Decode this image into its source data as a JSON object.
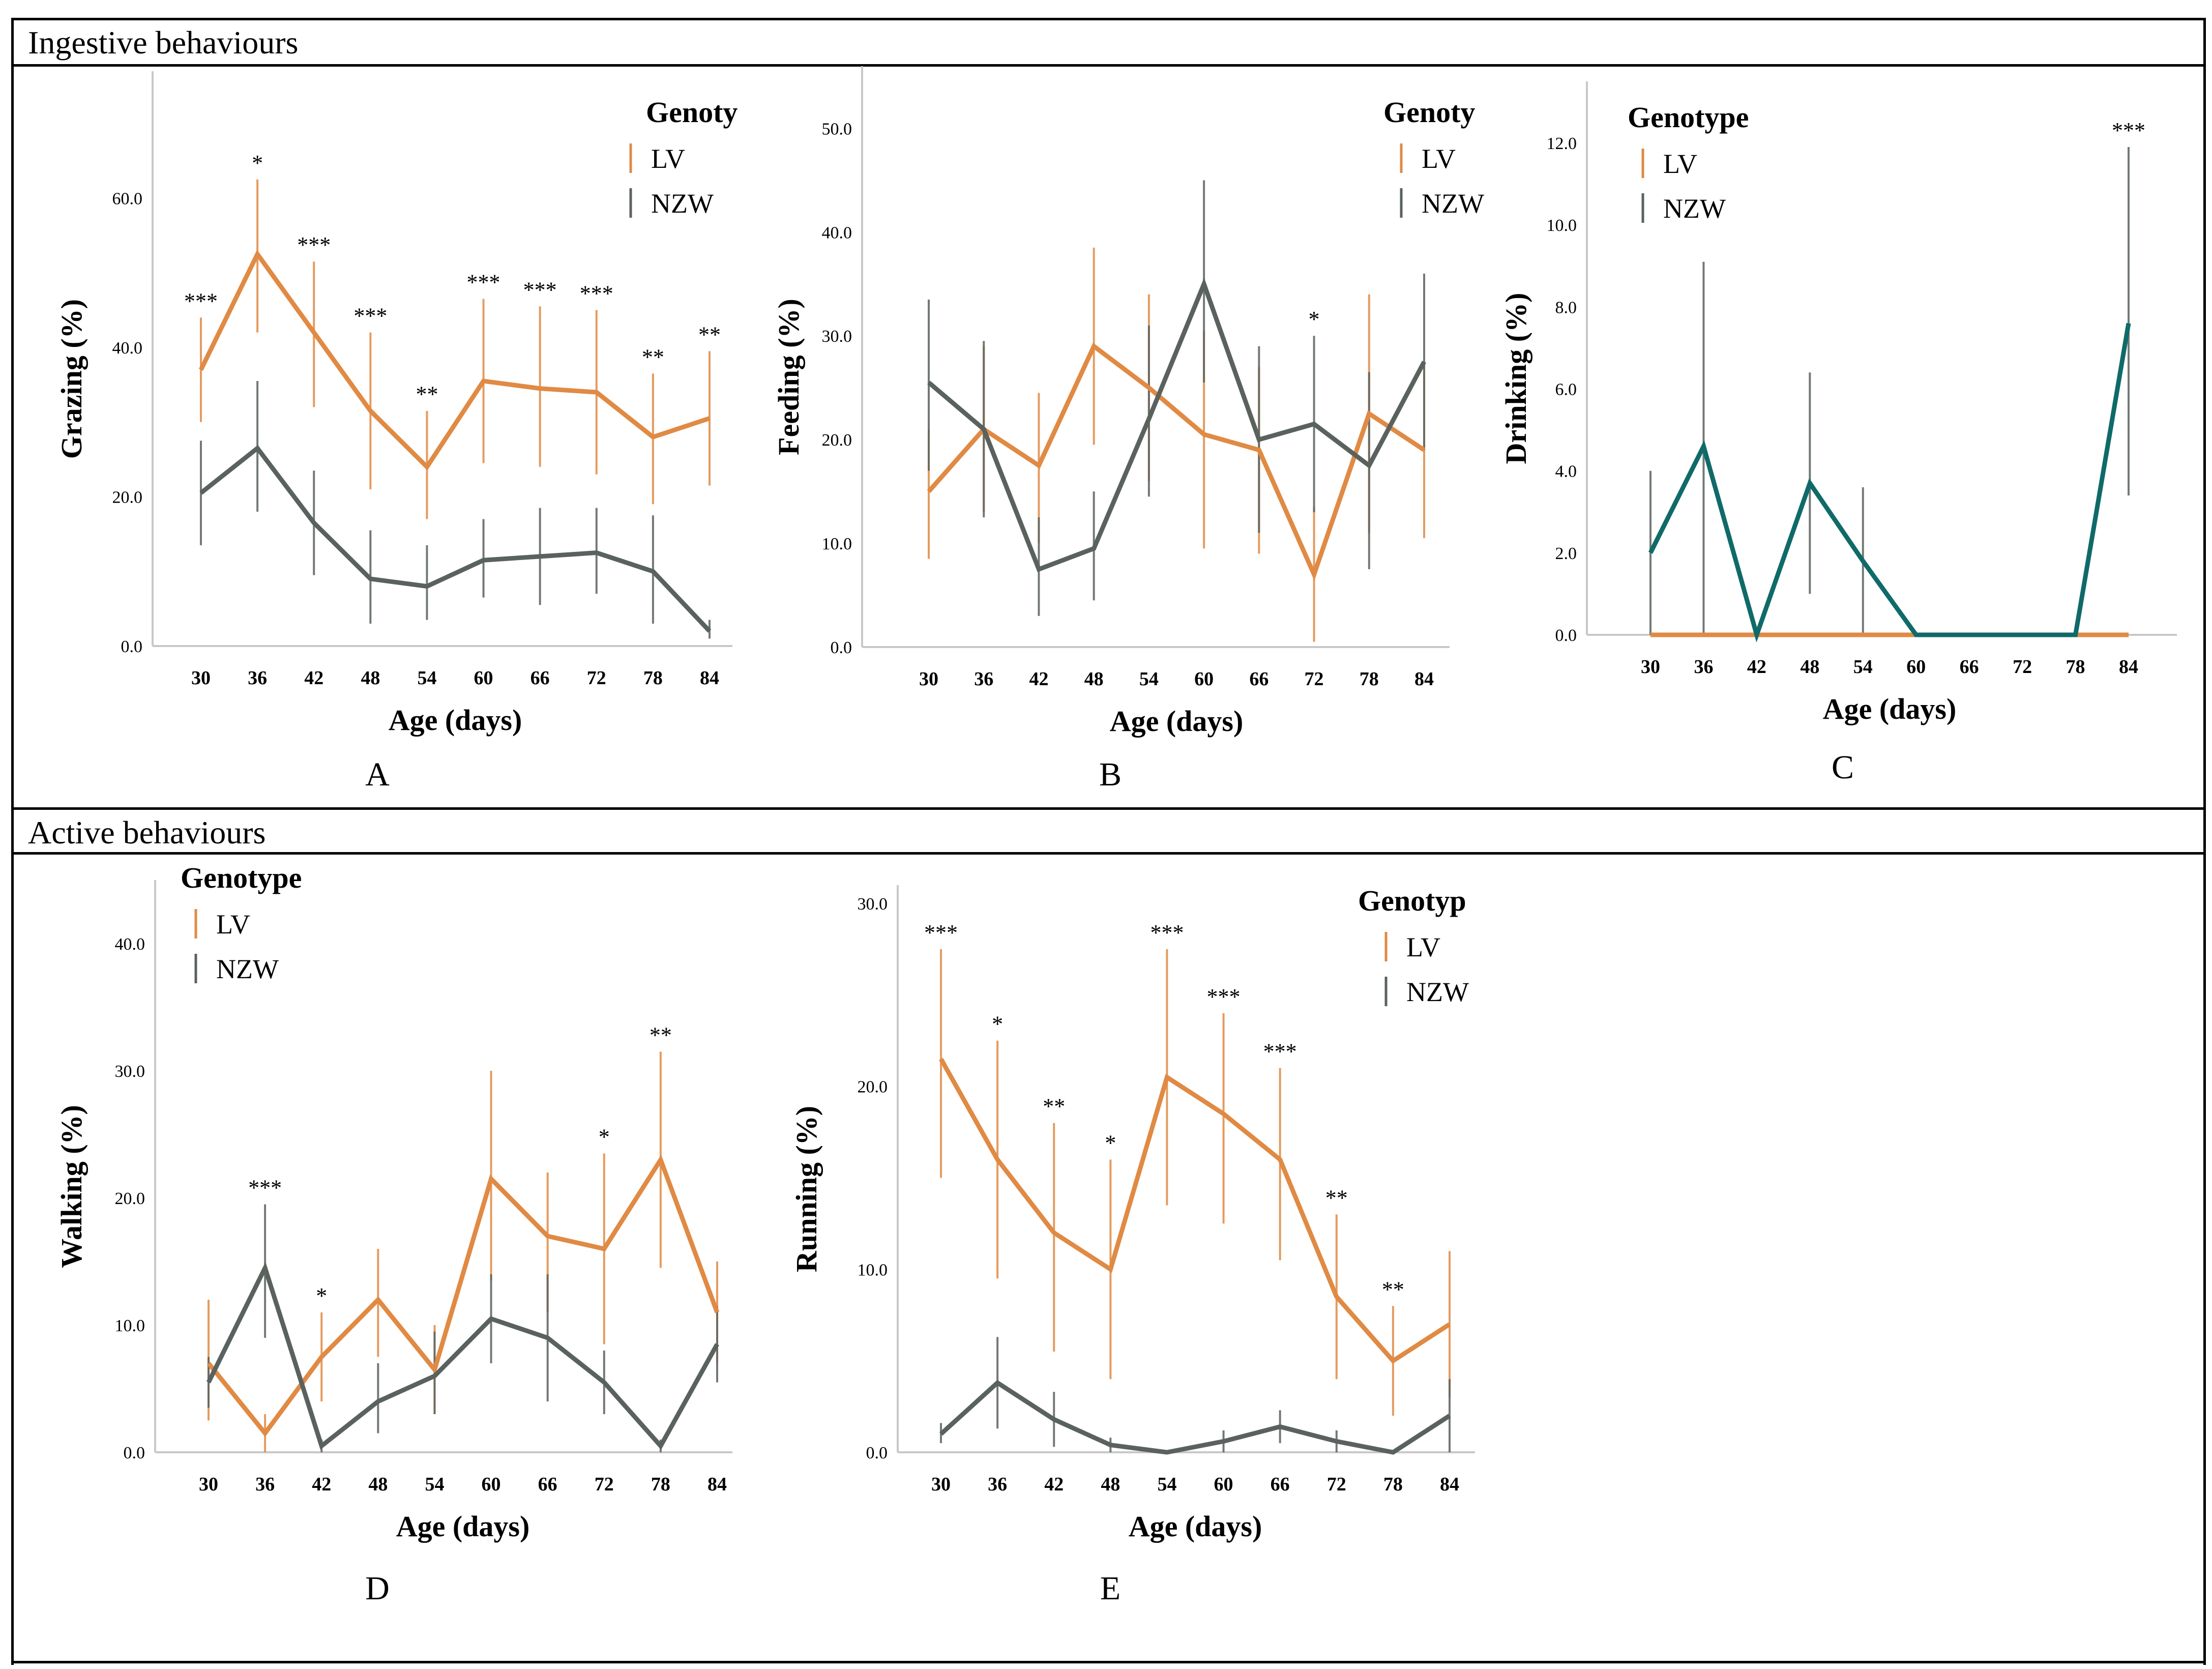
{
  "sections": {
    "ingestive": "Ingestive behaviours",
    "active": "Active behaviours"
  },
  "colors": {
    "lv": "#e08a44",
    "nzw": "#5a625e",
    "drink": "#0f6a69"
  },
  "chart_data": [
    {
      "id": "A",
      "type": "line",
      "panel_label": "A",
      "xlabel": "Age (days)",
      "ylabel": "Grazing (%)",
      "categories": [
        "30",
        "36",
        "42",
        "48",
        "54",
        "60",
        "66",
        "72",
        "78",
        "84"
      ],
      "yticks": [
        "0.0",
        "20.0",
        "40.0",
        "60.0"
      ],
      "ylim": [
        0,
        77
      ],
      "legend": {
        "title": "Genoty",
        "items": [
          "LV",
          "NZW"
        ]
      },
      "series": [
        {
          "name": "LV",
          "values": [
            37,
            52.5,
            42,
            31.5,
            24,
            35.5,
            34.5,
            34,
            28,
            30.5
          ],
          "low": [
            30,
            42,
            32,
            21,
            17,
            24.5,
            24,
            23,
            19,
            21.5
          ],
          "high": [
            44,
            62.5,
            51.5,
            42,
            31.5,
            46.5,
            45.5,
            45,
            36.5,
            39.5
          ]
        },
        {
          "name": "NZW",
          "values": [
            20.5,
            26.5,
            16.5,
            9,
            8,
            11.5,
            12,
            12.5,
            10,
            2
          ],
          "low": [
            13.5,
            18,
            9.5,
            3,
            3.5,
            6.5,
            5.5,
            7,
            3,
            1
          ],
          "high": [
            27.5,
            35.5,
            23.5,
            15.5,
            13.5,
            17,
            18.5,
            18.5,
            17.5,
            3.5
          ]
        }
      ],
      "annotations": [
        "***",
        "*",
        "***",
        "***",
        "**",
        "***",
        "***",
        "***",
        "**",
        "**"
      ],
      "annotation_y": [
        44,
        62.5,
        51.5,
        42,
        31.5,
        46.5,
        45.5,
        45,
        36.5,
        39.5
      ]
    },
    {
      "id": "B",
      "type": "line",
      "panel_label": "B",
      "xlabel": "Age (days)",
      "ylabel": "Feeding (%)",
      "categories": [
        "30",
        "36",
        "42",
        "48",
        "54",
        "60",
        "66",
        "72",
        "78",
        "84"
      ],
      "yticks": [
        "0.0",
        "10.0",
        "20.0",
        "30.0",
        "40.0",
        "50.0"
      ],
      "ylim": [
        0,
        56
      ],
      "legend": {
        "title": "Genoty",
        "items": [
          "LV",
          "NZW"
        ]
      },
      "series": [
        {
          "name": "LV",
          "values": [
            15,
            21,
            17.5,
            29,
            25,
            20.5,
            19,
            7,
            22.5,
            19
          ],
          "low": [
            8.5,
            13,
            10,
            19.5,
            16,
            9.5,
            9,
            0.5,
            11,
            10.5
          ],
          "high": [
            21,
            29,
            24.5,
            38.5,
            34,
            30.5,
            27,
            13.5,
            34,
            27.5
          ]
        },
        {
          "name": "NZW",
          "values": [
            25.5,
            21,
            7.5,
            9.5,
            22,
            35,
            20,
            21.5,
            17.5,
            27.5
          ],
          "low": [
            17,
            12.5,
            3,
            4.5,
            14.5,
            25.5,
            11,
            13,
            7.5,
            19
          ],
          "high": [
            33.5,
            29.5,
            12.5,
            15,
            31,
            45,
            29,
            30,
            26.5,
            36
          ]
        }
      ],
      "annotations": [
        "",
        "",
        "",
        "",
        "",
        "",
        "",
        "*",
        "",
        ""
      ],
      "annotation_y": [
        0,
        0,
        0,
        0,
        0,
        0,
        0,
        30,
        0,
        0
      ]
    },
    {
      "id": "C",
      "type": "line",
      "panel_label": "C",
      "xlabel": "Age (days)",
      "ylabel": "Drinking (%)",
      "categories": [
        "30",
        "36",
        "42",
        "48",
        "54",
        "60",
        "66",
        "72",
        "78",
        "84"
      ],
      "yticks": [
        "0.0",
        "2.0",
        "4.0",
        "6.0",
        "8.0",
        "10.0",
        "12.0"
      ],
      "ylim": [
        0,
        13.5
      ],
      "legend": {
        "title": "Genotype",
        "items": [
          "LV",
          "NZW"
        ]
      },
      "series": [
        {
          "name": "LV",
          "values": [
            0,
            0,
            0,
            0,
            0,
            0,
            0,
            0,
            0,
            0
          ],
          "low": [
            0,
            0,
            0,
            0,
            0,
            0,
            0,
            0,
            0,
            0
          ],
          "high": [
            0,
            0,
            0,
            0,
            0,
            0,
            0,
            0,
            0,
            0
          ]
        },
        {
          "name": "NZW",
          "values": [
            2,
            4.6,
            0,
            3.7,
            1.8,
            0,
            0,
            0,
            0,
            7.6
          ],
          "low": [
            0,
            0,
            0,
            1,
            0,
            0,
            0,
            0,
            0,
            3.4
          ],
          "high": [
            4,
            9.1,
            0,
            6.4,
            3.6,
            0,
            0,
            0,
            0,
            11.9
          ]
        }
      ],
      "annotations": [
        "",
        "",
        "",
        "",
        "",
        "",
        "",
        "",
        "",
        "***"
      ],
      "annotation_y": [
        0,
        0,
        0,
        0,
        0,
        0,
        0,
        0,
        0,
        11.9
      ]
    },
    {
      "id": "D",
      "type": "line",
      "panel_label": "D",
      "xlabel": "Age (days)",
      "ylabel": "Walking (%)",
      "categories": [
        "30",
        "36",
        "42",
        "48",
        "54",
        "60",
        "66",
        "72",
        "78",
        "84"
      ],
      "yticks": [
        "0.0",
        "10.0",
        "20.0",
        "30.0",
        "40.0"
      ],
      "ylim": [
        0,
        45
      ],
      "legend": {
        "title": "Genotype",
        "items": [
          "LV",
          "NZW"
        ]
      },
      "series": [
        {
          "name": "LV",
          "values": [
            7,
            1.5,
            7.5,
            12,
            6.5,
            21.5,
            17,
            16,
            23,
            11
          ],
          "low": [
            2.5,
            0,
            4,
            7.5,
            3,
            13.5,
            11,
            8.5,
            14.5,
            7
          ],
          "high": [
            12,
            3,
            11,
            16,
            10,
            30,
            22,
            23.5,
            31.5,
            15
          ]
        },
        {
          "name": "NZW",
          "values": [
            5.5,
            14.5,
            0.5,
            4,
            6,
            10.5,
            9,
            5.5,
            0.5,
            8.5
          ],
          "low": [
            3.5,
            9,
            0,
            1.5,
            3,
            7,
            4,
            3,
            0,
            5.5
          ],
          "high": [
            7.5,
            19.5,
            1,
            7,
            9.5,
            14,
            14,
            8,
            1,
            11.5
          ]
        }
      ],
      "annotations": [
        "",
        "***",
        "*",
        "",
        "",
        "",
        "",
        "*",
        "**",
        ""
      ],
      "annotation_y": [
        0,
        19.5,
        11,
        0,
        0,
        0,
        0,
        23.5,
        31.5,
        0
      ]
    },
    {
      "id": "E",
      "type": "line",
      "panel_label": "E",
      "xlabel": "Age (days)",
      "ylabel": "Running (%)",
      "categories": [
        "30",
        "36",
        "42",
        "48",
        "54",
        "60",
        "66",
        "72",
        "78",
        "84"
      ],
      "yticks": [
        "0.0",
        "10.0",
        "20.0",
        "30.0"
      ],
      "ylim": [
        0,
        31
      ],
      "legend": {
        "title": "Genotyp",
        "items": [
          "LV",
          "NZW"
        ]
      },
      "series": [
        {
          "name": "LV",
          "values": [
            21.5,
            16,
            12,
            10,
            20.5,
            18.5,
            16,
            8.5,
            5,
            7
          ],
          "low": [
            15,
            9.5,
            5.5,
            4,
            13.5,
            12.5,
            10.5,
            4,
            2,
            3
          ],
          "high": [
            27.5,
            22.5,
            18,
            16,
            27.5,
            24,
            21,
            13,
            8,
            11
          ]
        },
        {
          "name": "NZW",
          "values": [
            1,
            3.8,
            1.8,
            0.4,
            0,
            0.6,
            1.4,
            0.6,
            0,
            2
          ],
          "low": [
            0.5,
            1.3,
            0.3,
            0,
            0,
            0,
            0.5,
            0,
            0,
            0
          ],
          "high": [
            1.6,
            6.3,
            3.3,
            0.8,
            0,
            1.2,
            2.3,
            1.2,
            0,
            4
          ]
        }
      ],
      "annotations": [
        "***",
        "*",
        "**",
        "*",
        "***",
        "***",
        "***",
        "**",
        "**",
        ""
      ],
      "annotation_y": [
        27.5,
        22.5,
        18,
        16,
        27.5,
        24,
        21,
        13,
        8,
        0
      ]
    }
  ]
}
